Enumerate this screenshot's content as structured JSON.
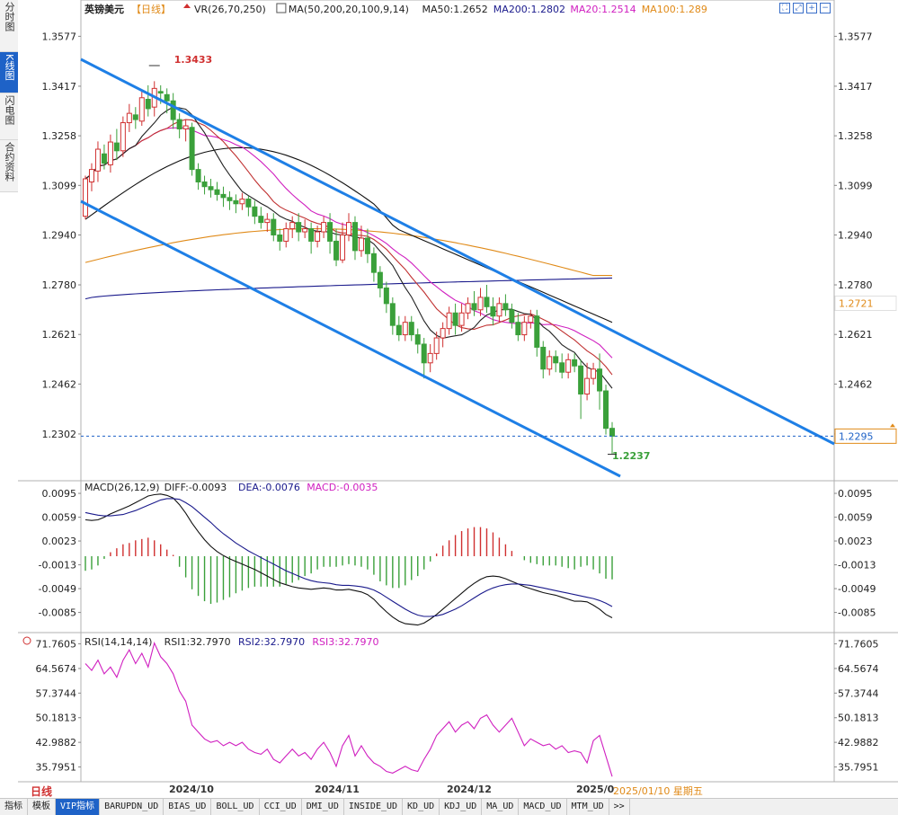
{
  "sidebar": {
    "tabs": [
      "分时图",
      "K线图",
      "闪电图",
      "合约资料"
    ],
    "active": 1
  },
  "header": {
    "symbol": "英镑美元",
    "period_tag": "【日线】",
    "indicators": [
      {
        "text": "VR(26,70,250)",
        "color": "#222222"
      },
      {
        "text": "MA(50,200,20,100,9,14)",
        "color": "#222222"
      },
      {
        "text": "MA50:1.2652",
        "color": "#222222"
      },
      {
        "text": "MA200:1.2802",
        "color": "#1a1a8c"
      },
      {
        "text": "MA20:1.2514",
        "color": "#d020c0"
      },
      {
        "text": "MA100:1.289",
        "color": "#e08a18"
      }
    ]
  },
  "macd_header": [
    {
      "text": "MACD(26,12,9)",
      "color": "#222222"
    },
    {
      "text": "DIFF:-0.0093",
      "color": "#222222"
    },
    {
      "text": "DEA:-0.0076",
      "color": "#1a1a8c"
    },
    {
      "text": "MACD:-0.0035",
      "color": "#d020c0"
    }
  ],
  "rsi_header": [
    {
      "text": "RSI(14,14,14)",
      "color": "#222222"
    },
    {
      "text": "RSI1:32.7970",
      "color": "#222222"
    },
    {
      "text": "RSI2:32.7970",
      "color": "#1a1a8c"
    },
    {
      "text": "RSI3:32.7970",
      "color": "#d020c0"
    }
  ],
  "footer": {
    "period": "日线",
    "dates": [
      "2024/10",
      "2024/11",
      "2024/12",
      "2025/0"
    ],
    "cursor_date": "2025/01/10 星期五",
    "tabs": [
      "指标",
      "模板",
      "VIP指标",
      "BARUPDN_UD",
      "BIAS_UD",
      "BOLL_UD",
      "CCI_UD",
      "DMI_UD",
      "INSIDE_UD",
      "KD_UD",
      "KDJ_UD",
      "MA_UD",
      "MACD_UD",
      "MTM_UD",
      ">>"
    ],
    "active_tab": 2
  },
  "colors": {
    "up": "#d03030",
    "down": "#3aa03a",
    "channel": "#1e7fe6",
    "ma9": "#222222",
    "ma14": "#c03030",
    "ma20": "#d020c0",
    "ma50": "#111111",
    "ma100": "#e08a18",
    "ma200": "#1a1a8c"
  },
  "chart_data": [
    {
      "type": "candlestick",
      "title": "英镑美元 日线",
      "y_ticks": [
        "1.3577",
        "1.3417",
        "1.3258",
        "1.3099",
        "1.2940",
        "1.2780",
        "1.2621",
        "1.2462",
        "1.2302"
      ],
      "ylim": [
        1.2152,
        1.363
      ],
      "annotations": {
        "high": "1.3433",
        "low": "1.2237",
        "last_price": "1.2295",
        "ma_level": "1.2721"
      },
      "candles": [
        [
          1.3,
          1.312,
          1.299,
          1.313
        ],
        [
          1.311,
          1.315,
          1.308,
          1.317
        ],
        [
          1.3145,
          1.3215,
          1.311,
          1.324
        ],
        [
          1.32,
          1.317,
          1.315,
          1.323
        ],
        [
          1.3165,
          1.3238,
          1.314,
          1.3262
        ],
        [
          1.3235,
          1.321,
          1.318,
          1.328
        ],
        [
          1.321,
          1.33,
          1.319,
          1.332
        ],
        [
          1.33,
          1.333,
          1.327,
          1.336
        ],
        [
          1.3325,
          1.331,
          1.328,
          1.335
        ],
        [
          1.3305,
          1.338,
          1.329,
          1.34
        ],
        [
          1.3375,
          1.3345,
          1.332,
          1.342
        ],
        [
          1.335,
          1.341,
          1.332,
          1.3433
        ],
        [
          1.34,
          1.3395,
          1.336,
          1.342
        ],
        [
          1.339,
          1.337,
          1.333,
          1.341
        ],
        [
          1.337,
          1.331,
          1.328,
          1.3395
        ],
        [
          1.331,
          1.328,
          1.325,
          1.333
        ],
        [
          1.328,
          1.329,
          1.324,
          1.331
        ],
        [
          1.3285,
          1.315,
          1.313,
          1.33
        ],
        [
          1.315,
          1.311,
          1.3085,
          1.317
        ],
        [
          1.311,
          1.3095,
          1.307,
          1.313
        ],
        [
          1.3095,
          1.3085,
          1.306,
          1.312
        ],
        [
          1.3085,
          1.307,
          1.305,
          1.311
        ],
        [
          1.307,
          1.306,
          1.303,
          1.3095
        ],
        [
          1.306,
          1.305,
          1.302,
          1.308
        ],
        [
          1.305,
          1.304,
          1.301,
          1.307
        ],
        [
          1.304,
          1.3055,
          1.302,
          1.3075
        ],
        [
          1.3055,
          1.303,
          1.3,
          1.3065
        ],
        [
          1.303,
          1.3,
          1.2975,
          1.305
        ],
        [
          1.3,
          1.298,
          1.296,
          1.303
        ],
        [
          1.298,
          1.299,
          1.295,
          1.301
        ],
        [
          1.299,
          1.294,
          1.292,
          1.301
        ],
        [
          1.294,
          1.292,
          1.289,
          1.296
        ],
        [
          1.292,
          1.296,
          1.29,
          1.298
        ],
        [
          1.296,
          1.298,
          1.293,
          1.3
        ],
        [
          1.298,
          1.295,
          1.292,
          1.301
        ],
        [
          1.295,
          1.296,
          1.293,
          1.299
        ],
        [
          1.296,
          1.292,
          1.288,
          1.298
        ],
        [
          1.292,
          1.295,
          1.29,
          1.297
        ],
        [
          1.295,
          1.298,
          1.293,
          1.3
        ],
        [
          1.298,
          1.292,
          1.288,
          1.301
        ],
        [
          1.292,
          1.286,
          1.284,
          1.296
        ],
        [
          1.286,
          1.294,
          1.285,
          1.298
        ],
        [
          1.294,
          1.298,
          1.292,
          1.301
        ],
        [
          1.298,
          1.289,
          1.286,
          1.3
        ],
        [
          1.289,
          1.293,
          1.287,
          1.297
        ],
        [
          1.293,
          1.288,
          1.285,
          1.296
        ],
        [
          1.288,
          1.282,
          1.279,
          1.29
        ],
        [
          1.282,
          1.277,
          1.274,
          1.284
        ],
        [
          1.277,
          1.272,
          1.269,
          1.279
        ],
        [
          1.272,
          1.265,
          1.262,
          1.274
        ],
        [
          1.265,
          1.262,
          1.26,
          1.268
        ],
        [
          1.262,
          1.266,
          1.26,
          1.268
        ],
        [
          1.266,
          1.262,
          1.26,
          1.268
        ],
        [
          1.262,
          1.259,
          1.256,
          1.264
        ],
        [
          1.259,
          1.253,
          1.248,
          1.261
        ],
        [
          1.253,
          1.256,
          1.25,
          1.259
        ],
        [
          1.256,
          1.261,
          1.254,
          1.263
        ],
        [
          1.261,
          1.264,
          1.258,
          1.266
        ],
        [
          1.264,
          1.269,
          1.262,
          1.271
        ],
        [
          1.269,
          1.265,
          1.262,
          1.272
        ],
        [
          1.265,
          1.269,
          1.263,
          1.272
        ],
        [
          1.269,
          1.272,
          1.267,
          1.274
        ],
        [
          1.272,
          1.27,
          1.268,
          1.276
        ],
        [
          1.27,
          1.274,
          1.268,
          1.277
        ],
        [
          1.274,
          1.271,
          1.269,
          1.278
        ],
        [
          1.271,
          1.268,
          1.265,
          1.274
        ],
        [
          1.268,
          1.272,
          1.266,
          1.274
        ],
        [
          1.272,
          1.27,
          1.268,
          1.275
        ],
        [
          1.27,
          1.266,
          1.264,
          1.272
        ],
        [
          1.266,
          1.262,
          1.26,
          1.269
        ],
        [
          1.262,
          1.266,
          1.26,
          1.268
        ],
        [
          1.266,
          1.268,
          1.264,
          1.27
        ],
        [
          1.268,
          1.258,
          1.255,
          1.27
        ],
        [
          1.258,
          1.251,
          1.248,
          1.26
        ],
        [
          1.251,
          1.255,
          1.249,
          1.257
        ],
        [
          1.255,
          1.253,
          1.25,
          1.257
        ],
        [
          1.253,
          1.25,
          1.248,
          1.256
        ],
        [
          1.25,
          1.254,
          1.248,
          1.256
        ],
        [
          1.254,
          1.252,
          1.25,
          1.256
        ],
        [
          1.252,
          1.243,
          1.235,
          1.254
        ],
        [
          1.243,
          1.248,
          1.241,
          1.253
        ],
        [
          1.248,
          1.251,
          1.246,
          1.253
        ],
        [
          1.251,
          1.244,
          1.238,
          1.256
        ],
        [
          1.244,
          1.232,
          1.23,
          1.246
        ],
        [
          1.232,
          1.2295,
          1.2237,
          1.234
        ]
      ]
    },
    {
      "type": "bar",
      "title": "MACD(26,12,9)",
      "y_ticks": [
        "0.0095",
        "0.0059",
        "0.0023",
        "-0.0013",
        "-0.0049",
        "-0.0085"
      ],
      "ylim": [
        -0.011,
        0.011
      ],
      "series": [
        {
          "name": "DIFF",
          "values": [
            0.0055,
            0.0054,
            0.0055,
            0.0059,
            0.0064,
            0.0068,
            0.0072,
            0.0076,
            0.0081,
            0.0086,
            0.0091,
            0.0093,
            0.0094,
            0.0092,
            0.0088,
            0.0078,
            0.0065,
            0.005,
            0.0037,
            0.0025,
            0.0015,
            0.0007,
            0.0001,
            -0.0004,
            -0.0008,
            -0.0012,
            -0.0016,
            -0.002,
            -0.0025,
            -0.003,
            -0.0035,
            -0.004,
            -0.0043,
            -0.0046,
            -0.0048,
            -0.0049,
            -0.005,
            -0.0049,
            -0.0048,
            -0.0049,
            -0.0051,
            -0.0051,
            -0.005,
            -0.0052,
            -0.0054,
            -0.0058,
            -0.0065,
            -0.0075,
            -0.0084,
            -0.0092,
            -0.0098,
            -0.0102,
            -0.0103,
            -0.0104,
            -0.0101,
            -0.0095,
            -0.0088,
            -0.008,
            -0.0072,
            -0.0064,
            -0.0056,
            -0.0048,
            -0.0041,
            -0.0035,
            -0.0031,
            -0.003,
            -0.0031,
            -0.0034,
            -0.0038,
            -0.0042,
            -0.0046,
            -0.0049,
            -0.0052,
            -0.0055,
            -0.0057,
            -0.0059,
            -0.0062,
            -0.0065,
            -0.0068,
            -0.0068,
            -0.0069,
            -0.0074,
            -0.008,
            -0.0088,
            -0.0093
          ]
        },
        {
          "name": "DEA",
          "values": [
            0.0066,
            0.0064,
            0.0062,
            0.0061,
            0.0061,
            0.0062,
            0.0063,
            0.0066,
            0.0069,
            0.0073,
            0.0077,
            0.0081,
            0.0085,
            0.0087,
            0.0087,
            0.0086,
            0.0081,
            0.0075,
            0.0067,
            0.0059,
            0.0051,
            0.0042,
            0.0034,
            0.0027,
            0.002,
            0.0014,
            0.0008,
            0.0003,
            -0.0002,
            -0.0007,
            -0.0012,
            -0.0017,
            -0.0022,
            -0.0026,
            -0.003,
            -0.0034,
            -0.0037,
            -0.0039,
            -0.004,
            -0.0041,
            -0.0043,
            -0.0044,
            -0.0044,
            -0.0045,
            -0.0046,
            -0.0048,
            -0.0051,
            -0.0056,
            -0.0062,
            -0.0068,
            -0.0074,
            -0.008,
            -0.0085,
            -0.0089,
            -0.0091,
            -0.0091,
            -0.009,
            -0.0088,
            -0.0084,
            -0.008,
            -0.0075,
            -0.0069,
            -0.0063,
            -0.0057,
            -0.0052,
            -0.0048,
            -0.0045,
            -0.0043,
            -0.0042,
            -0.0042,
            -0.0043,
            -0.0044,
            -0.0046,
            -0.0048,
            -0.005,
            -0.0052,
            -0.0054,
            -0.0056,
            -0.0058,
            -0.006,
            -0.0062,
            -0.0064,
            -0.0067,
            -0.0071,
            -0.0076
          ]
        },
        {
          "name": "MACD",
          "values": [
            -0.0022,
            -0.002,
            -0.0014,
            -0.0004,
            0.0006,
            0.0012,
            0.0018,
            0.002,
            0.0024,
            0.0026,
            0.0028,
            0.0024,
            0.0018,
            0.001,
            0.0002,
            -0.0016,
            -0.0032,
            -0.005,
            -0.006,
            -0.0068,
            -0.0072,
            -0.007,
            -0.0066,
            -0.0062,
            -0.0056,
            -0.0052,
            -0.0048,
            -0.0046,
            -0.0046,
            -0.0046,
            -0.0046,
            -0.0046,
            -0.0042,
            -0.004,
            -0.0036,
            -0.003,
            -0.0026,
            -0.002,
            -0.0016,
            -0.0016,
            -0.0016,
            -0.0014,
            -0.0012,
            -0.0014,
            -0.0016,
            -0.002,
            -0.0028,
            -0.0038,
            -0.0044,
            -0.0048,
            -0.0048,
            -0.0044,
            -0.0036,
            -0.003,
            -0.002,
            -0.0008,
            0.0004,
            0.0016,
            0.0024,
            0.0032,
            0.0038,
            0.0042,
            0.0044,
            0.0044,
            0.0042,
            0.0036,
            0.0028,
            0.0018,
            0.0008,
            0.0,
            -0.0006,
            -0.001,
            -0.0012,
            -0.0014,
            -0.0014,
            -0.0014,
            -0.0016,
            -0.0018,
            -0.002,
            -0.0016,
            -0.0014,
            -0.002,
            -0.0026,
            -0.0034,
            -0.0035
          ]
        }
      ]
    },
    {
      "type": "line",
      "title": "RSI(14,14,14)",
      "y_ticks": [
        "71.7605",
        "64.5674",
        "57.3744",
        "50.1813",
        "42.9882",
        "35.7951"
      ],
      "ylim": [
        32.0,
        74.0
      ],
      "series": [
        {
          "name": "RSI1",
          "values": [
            66,
            64,
            67,
            63,
            65,
            62,
            67,
            70,
            66,
            69,
            65,
            72,
            68,
            66,
            63,
            58,
            55,
            48,
            46,
            44,
            43,
            43.5,
            42,
            43,
            42,
            43,
            41,
            40,
            39.5,
            41,
            38,
            37,
            39,
            41,
            39,
            40,
            38,
            41,
            43,
            40,
            36,
            42,
            45,
            39,
            42,
            39,
            37,
            36,
            34.5,
            34,
            35,
            36,
            35,
            34.5,
            38,
            41,
            45,
            47,
            49,
            46,
            48,
            49,
            47,
            50,
            51,
            48,
            46,
            48,
            50,
            46,
            42,
            44,
            43,
            42,
            42.5,
            41,
            42,
            40,
            40.5,
            40,
            37,
            43.5,
            45,
            39,
            33
          ]
        }
      ]
    }
  ]
}
